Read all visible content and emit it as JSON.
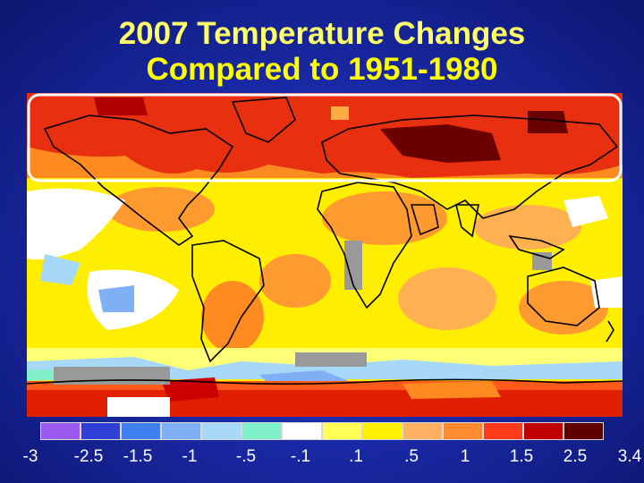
{
  "title": {
    "line1": "2007 Temperature Changes",
    "line2": "Compared to 1951-1980"
  },
  "legend": {
    "colors": [
      "#9b59f0",
      "#2f3fd8",
      "#3f7ff0",
      "#7fb0f5",
      "#a8d8f8",
      "#7ff0c8",
      "#ffffff",
      "#ffff55",
      "#ffef00",
      "#ffb060",
      "#ff8a30",
      "#ff3a1a",
      "#c00000",
      "#600000"
    ],
    "ticks": [
      "-3",
      "-2.5",
      "-1.5",
      "-1",
      "-.5",
      "-.1",
      ".1",
      ".5",
      "1",
      "1.5",
      "2.5",
      "3.4"
    ]
  },
  "highlight": {
    "region": "Arctic / northern high latitudes",
    "color": "#ffffff"
  },
  "palette": {
    "ocean_warm": "#ffee00",
    "strong_warm": "#e01a00",
    "extreme_warm": "#6a0000",
    "no_data": "#999999"
  }
}
